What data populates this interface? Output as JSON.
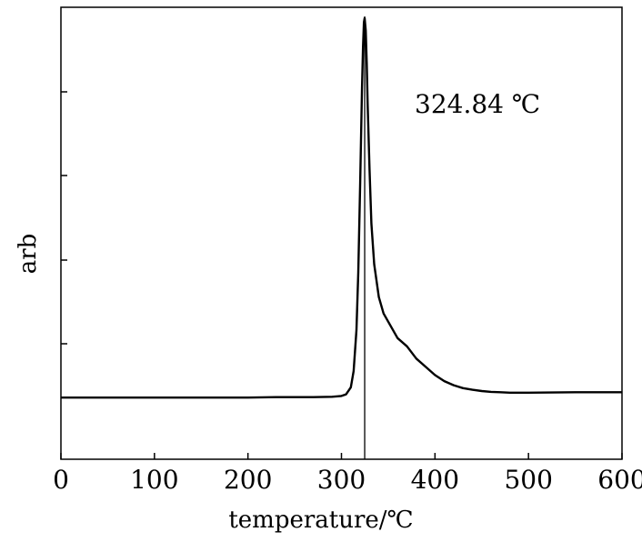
{
  "chart_data": {
    "type": "line",
    "xlabel": "temperature/℃",
    "ylabel": "arb",
    "xlim": [
      0,
      600
    ],
    "ylim": [
      0,
      1
    ],
    "xticks": [
      0,
      100,
      200,
      300,
      400,
      500,
      600
    ],
    "yticks_unlabeled": [
      0.2,
      0.4,
      0.6,
      0.8
    ],
    "grid": false,
    "annotation": {
      "text": "324.84 ℃",
      "x": 324.84
    },
    "series": [
      {
        "x": [
          0,
          100,
          200,
          230,
          270,
          290,
          300,
          305,
          310,
          313,
          316,
          318,
          320,
          322,
          323,
          324,
          324.84,
          326,
          327,
          328,
          330,
          332,
          335,
          340,
          345,
          350,
          360,
          370,
          380,
          390,
          400,
          410,
          420,
          430,
          440,
          450,
          460,
          470,
          480,
          500,
          550,
          600
        ],
        "y": [
          0.075,
          0.075,
          0.075,
          0.076,
          0.076,
          0.077,
          0.079,
          0.083,
          0.1,
          0.14,
          0.24,
          0.38,
          0.6,
          0.83,
          0.93,
          0.99,
          1.0,
          0.97,
          0.89,
          0.79,
          0.63,
          0.5,
          0.4,
          0.32,
          0.28,
          0.26,
          0.22,
          0.2,
          0.17,
          0.15,
          0.13,
          0.115,
          0.105,
          0.098,
          0.094,
          0.091,
          0.089,
          0.088,
          0.087,
          0.087,
          0.088,
          0.088
        ]
      }
    ]
  }
}
